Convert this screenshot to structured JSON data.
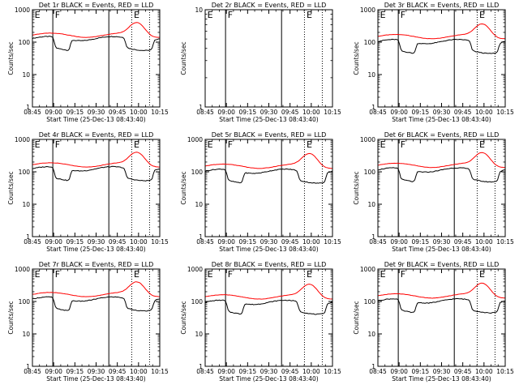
{
  "chart_data": [
    {
      "type": "line",
      "title": "Det 1r BLACK = Events, RED = LLD",
      "xlabel": "Start Time (25-Dec-13 08:43:40)",
      "ylabel": "Counts/sec",
      "yscale": "log",
      "ylim": [
        1,
        1000
      ],
      "xlim": [
        0,
        100
      ],
      "x_tick_labels": [
        "08:45",
        "09:00",
        "09:15",
        "09:30",
        "09:45",
        "10:00",
        "10:15"
      ],
      "y_tick_labels": [
        "1",
        "10",
        "100",
        "1000"
      ],
      "markers": [
        {
          "label": "E",
          "x": 1
        },
        {
          "label": "F",
          "x": 17
        },
        {
          "label": "E",
          "x": 79
        }
      ],
      "solid_lines": [
        16,
        60
      ],
      "dotted_lines": [
        78,
        92
      ],
      "has_data": true,
      "events_base": 130,
      "lld_base": 165
    },
    {
      "type": "line",
      "title": "Det 2r BLACK = Events, RED = LLD",
      "xlabel": "Start Time (25-Dec-13 08:43:40)",
      "ylabel": "Counts/sec",
      "yscale": "log",
      "ylim": [
        1,
        10
      ],
      "xlim": [
        0,
        100
      ],
      "x_tick_labels": [
        "08:45",
        "09:00",
        "09:15",
        "09:30",
        "09:45",
        "10:00",
        "10:15"
      ],
      "y_tick_labels": [
        "1",
        "10"
      ],
      "markers": [
        {
          "label": "E",
          "x": 1
        },
        {
          "label": "F",
          "x": 17
        },
        {
          "label": "E",
          "x": 79
        }
      ],
      "solid_lines": [
        16,
        60
      ],
      "dotted_lines": [
        78,
        92
      ],
      "has_data": false,
      "events_base": 0,
      "lld_base": 0
    },
    {
      "type": "line",
      "title": "Det 3r BLACK = Events, RED = LLD",
      "xlabel": "Start Time (25-Dec-13 08:43:40)",
      "ylabel": "Counts/sec",
      "yscale": "log",
      "ylim": [
        1,
        1000
      ],
      "xlim": [
        0,
        100
      ],
      "x_tick_labels": [
        "08:45",
        "09:00",
        "09:15",
        "09:30",
        "09:45",
        "10:00",
        "10:15"
      ],
      "y_tick_labels": [
        "1",
        "10",
        "100",
        "1000"
      ],
      "markers": [
        {
          "label": "E",
          "x": 1
        },
        {
          "label": "F",
          "x": 17
        },
        {
          "label": "E",
          "x": 79
        }
      ],
      "solid_lines": [
        16,
        60
      ],
      "dotted_lines": [
        78,
        92
      ],
      "has_data": true,
      "events_base": 105,
      "lld_base": 150
    },
    {
      "type": "line",
      "title": "Det 4r BLACK = Events, RED = LLD",
      "xlabel": "Start Time (25-Dec-13 08:43:40)",
      "ylabel": "Counts/sec",
      "yscale": "log",
      "ylim": [
        1,
        1000
      ],
      "xlim": [
        0,
        100
      ],
      "x_tick_labels": [
        "08:45",
        "09:00",
        "09:15",
        "09:30",
        "09:45",
        "10:00",
        "10:15"
      ],
      "y_tick_labels": [
        "1",
        "10",
        "100",
        "1000"
      ],
      "markers": [
        {
          "label": "E",
          "x": 1
        },
        {
          "label": "F",
          "x": 17
        },
        {
          "label": "E",
          "x": 79
        }
      ],
      "solid_lines": [
        16,
        60
      ],
      "dotted_lines": [
        78,
        92
      ],
      "has_data": true,
      "events_base": 125,
      "lld_base": 165
    },
    {
      "type": "line",
      "title": "Det 5r BLACK = Events, RED = LLD",
      "xlabel": "Start Time (25-Dec-13 08:43:40)",
      "ylabel": "Counts/sec",
      "yscale": "log",
      "ylim": [
        1,
        1000
      ],
      "xlim": [
        0,
        100
      ],
      "x_tick_labels": [
        "08:45",
        "09:00",
        "09:15",
        "09:30",
        "09:45",
        "10:00",
        "10:15"
      ],
      "y_tick_labels": [
        "1",
        "10",
        "100",
        "1000"
      ],
      "markers": [
        {
          "label": "E",
          "x": 1
        },
        {
          "label": "F",
          "x": 17
        },
        {
          "label": "E",
          "x": 79
        }
      ],
      "solid_lines": [
        16,
        60
      ],
      "dotted_lines": [
        78,
        92
      ],
      "has_data": true,
      "events_base": 105,
      "lld_base": 150
    },
    {
      "type": "line",
      "title": "Det 6r BLACK = Events, RED = LLD",
      "xlabel": "Start Time (25-Dec-13 08:43:40)",
      "ylabel": "Counts/sec",
      "yscale": "log",
      "ylim": [
        1,
        1000
      ],
      "xlim": [
        0,
        100
      ],
      "x_tick_labels": [
        "08:45",
        "09:00",
        "09:15",
        "09:30",
        "09:45",
        "10:00",
        "10:15"
      ],
      "y_tick_labels": [
        "1",
        "10",
        "100",
        "1000"
      ],
      "markers": [
        {
          "label": "E",
          "x": 1
        },
        {
          "label": "F",
          "x": 17
        },
        {
          "label": "E",
          "x": 79
        }
      ],
      "solid_lines": [
        16,
        60
      ],
      "dotted_lines": [
        78,
        92
      ],
      "has_data": true,
      "events_base": 115,
      "lld_base": 160
    },
    {
      "type": "line",
      "title": "Det 7r BLACK = Events, RED = LLD",
      "xlabel": "Start Time (25-Dec-13 08:43:40)",
      "ylabel": "Counts/sec",
      "yscale": "log",
      "ylim": [
        1,
        1000
      ],
      "xlim": [
        0,
        100
      ],
      "x_tick_labels": [
        "08:45",
        "09:00",
        "09:15",
        "09:30",
        "09:45",
        "10:00",
        "10:15"
      ],
      "y_tick_labels": [
        "1",
        "10",
        "100",
        "1000"
      ],
      "markers": [
        {
          "label": "E",
          "x": 1
        },
        {
          "label": "F",
          "x": 17
        },
        {
          "label": "E",
          "x": 79
        }
      ],
      "solid_lines": [
        16,
        60
      ],
      "dotted_lines": [
        78,
        92
      ],
      "has_data": true,
      "events_base": 120,
      "lld_base": 165
    },
    {
      "type": "line",
      "title": "Det 8r BLACK = Events, RED = LLD",
      "xlabel": "Start Time (25-Dec-13 08:43:40)",
      "ylabel": "Counts/sec",
      "yscale": "log",
      "ylim": [
        1,
        1000
      ],
      "xlim": [
        0,
        100
      ],
      "x_tick_labels": [
        "08:45",
        "09:00",
        "09:15",
        "09:30",
        "09:45",
        "10:00",
        "10:15"
      ],
      "y_tick_labels": [
        "1",
        "10",
        "100",
        "1000"
      ],
      "markers": [
        {
          "label": "E",
          "x": 1
        },
        {
          "label": "F",
          "x": 17
        },
        {
          "label": "E",
          "x": 79
        }
      ],
      "solid_lines": [
        16,
        60
      ],
      "dotted_lines": [
        78,
        92
      ],
      "has_data": true,
      "events_base": 95,
      "lld_base": 140
    },
    {
      "type": "line",
      "title": "Det 9r BLACK = Events, RED = LLD",
      "xlabel": "Start Time (25-Dec-13 08:43:40)",
      "ylabel": "Counts/sec",
      "yscale": "log",
      "ylim": [
        1,
        1000
      ],
      "xlim": [
        0,
        100
      ],
      "x_tick_labels": [
        "08:45",
        "09:00",
        "09:15",
        "09:30",
        "09:45",
        "10:00",
        "10:15"
      ],
      "y_tick_labels": [
        "1",
        "10",
        "100",
        "1000"
      ],
      "markers": [
        {
          "label": "E",
          "x": 1
        },
        {
          "label": "F",
          "x": 17
        },
        {
          "label": "E",
          "x": 79
        }
      ],
      "solid_lines": [
        16,
        60
      ],
      "dotted_lines": [
        78,
        92
      ],
      "has_data": true,
      "events_base": 105,
      "lld_base": 150
    }
  ],
  "colors": {
    "events": "#000000",
    "lld": "#ff0000",
    "axes": "#000000",
    "background": "#ffffff"
  }
}
